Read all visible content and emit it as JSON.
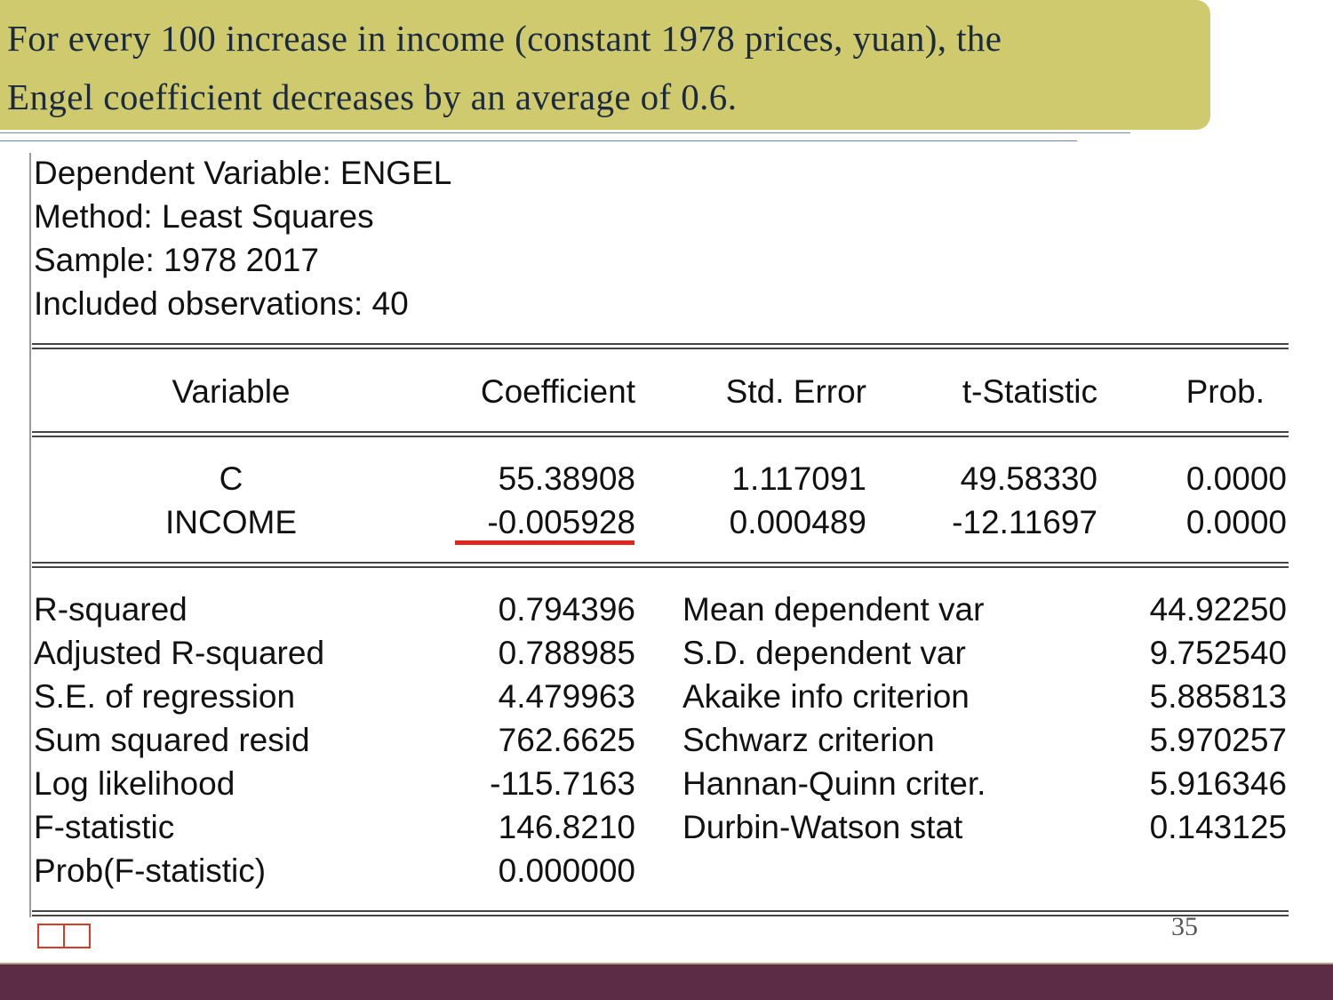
{
  "callout": {
    "line1": "For every 100 increase in income (constant 1978 prices, yuan), the",
    "line2": "Engel coefficient decreases by an average of 0.6."
  },
  "regression": {
    "header": [
      "Dependent Variable: ENGEL",
      "Method: Least Squares",
      "Sample: 1978 2017",
      "Included observations: 40"
    ],
    "columns": [
      "Variable",
      "Coefficient",
      "Std. Error",
      "t-Statistic",
      "Prob."
    ],
    "rows": [
      {
        "variable": "C",
        "coefficient": "55.38908",
        "std_error": "1.117091",
        "t_stat": "49.58330",
        "prob": "0.0000"
      },
      {
        "variable": "INCOME",
        "coefficient": "-0.005928",
        "std_error": "0.000489",
        "t_stat": "-12.11697",
        "prob": "0.0000"
      }
    ],
    "stats_left": [
      {
        "label": "R-squared",
        "value": "0.794396"
      },
      {
        "label": "Adjusted R-squared",
        "value": "0.788985"
      },
      {
        "label": "S.E. of regression",
        "value": "4.479963"
      },
      {
        "label": "Sum squared resid",
        "value": "762.6625"
      },
      {
        "label": "Log likelihood",
        "value": "-115.7163"
      },
      {
        "label": "F-statistic",
        "value": "146.8210"
      },
      {
        "label": "Prob(F-statistic)",
        "value": "0.000000"
      }
    ],
    "stats_right": [
      {
        "label": "Mean dependent var",
        "value": "44.92250"
      },
      {
        "label": "S.D. dependent var",
        "value": "9.752540"
      },
      {
        "label": "Akaike info criterion",
        "value": "5.885813"
      },
      {
        "label": "Schwarz criterion",
        "value": "5.970257"
      },
      {
        "label": "Hannan-Quinn criter.",
        "value": "5.916346"
      },
      {
        "label": "Durbin-Watson stat",
        "value": "0.143125"
      }
    ],
    "highlight_color": "#e0251c"
  },
  "slide": {
    "number": "35",
    "accent_color": "#cfca6e",
    "footer_color": "#5c2b46"
  }
}
